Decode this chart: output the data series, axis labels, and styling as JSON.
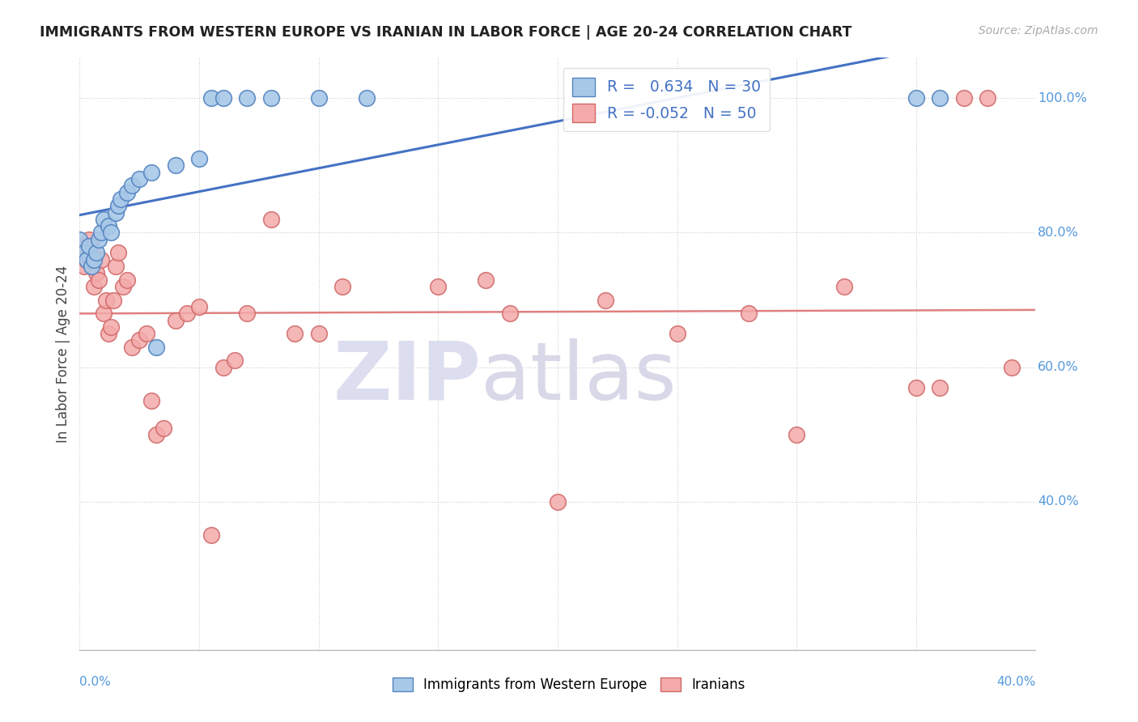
{
  "title": "IMMIGRANTS FROM WESTERN EUROPE VS IRANIAN IN LABOR FORCE | AGE 20-24 CORRELATION CHART",
  "source": "Source: ZipAtlas.com",
  "ylabel": "In Labor Force | Age 20-24",
  "legend_blue_label": "R =   0.634   N = 30",
  "legend_pink_label": "R = -0.052   N = 50",
  "legend_bottom_blue": "Immigrants from Western Europe",
  "legend_bottom_pink": "Iranians",
  "blue_color": "#A8C8E8",
  "pink_color": "#F4AAAA",
  "blue_edge_color": "#5585C0",
  "pink_edge_color": "#D06868",
  "blue_line_color": "#4472C4",
  "pink_line_color": "#E08080",
  "legend_text_color": "#4472C4",
  "right_axis_color": "#5599DD",
  "bg_color": "#FFFFFF",
  "xlim": [
    0,
    0.4
  ],
  "ylim": [
    0.18,
    1.06
  ],
  "ytick_vals": [
    1.0,
    0.8,
    0.6,
    0.4
  ],
  "ytick_labels": [
    "100.0%",
    "80.0%",
    "60.0%",
    "40.0%"
  ],
  "blue_x": [
    0.0,
    0.002,
    0.003,
    0.004,
    0.005,
    0.006,
    0.007,
    0.008,
    0.009,
    0.01,
    0.012,
    0.013,
    0.015,
    0.016,
    0.017,
    0.02,
    0.022,
    0.025,
    0.03,
    0.032,
    0.04,
    0.05,
    0.055,
    0.06,
    0.07,
    0.08,
    0.1,
    0.12,
    0.35,
    0.36
  ],
  "blue_y": [
    0.79,
    0.77,
    0.76,
    0.78,
    0.75,
    0.76,
    0.77,
    0.79,
    0.8,
    0.82,
    0.81,
    0.8,
    0.83,
    0.84,
    0.85,
    0.86,
    0.87,
    0.88,
    0.89,
    0.63,
    0.9,
    0.91,
    1.0,
    1.0,
    1.0,
    1.0,
    1.0,
    1.0,
    1.0,
    1.0
  ],
  "pink_x": [
    0.0,
    0.001,
    0.002,
    0.003,
    0.004,
    0.005,
    0.006,
    0.007,
    0.008,
    0.009,
    0.01,
    0.011,
    0.012,
    0.013,
    0.014,
    0.015,
    0.016,
    0.018,
    0.02,
    0.022,
    0.025,
    0.028,
    0.03,
    0.032,
    0.035,
    0.04,
    0.045,
    0.05,
    0.055,
    0.06,
    0.065,
    0.07,
    0.08,
    0.09,
    0.1,
    0.11,
    0.15,
    0.17,
    0.18,
    0.2,
    0.22,
    0.25,
    0.28,
    0.3,
    0.32,
    0.35,
    0.36,
    0.37,
    0.38,
    0.39
  ],
  "pink_y": [
    0.77,
    0.78,
    0.75,
    0.76,
    0.79,
    0.78,
    0.72,
    0.74,
    0.73,
    0.76,
    0.68,
    0.7,
    0.65,
    0.66,
    0.7,
    0.75,
    0.77,
    0.72,
    0.73,
    0.63,
    0.64,
    0.65,
    0.55,
    0.5,
    0.51,
    0.67,
    0.68,
    0.69,
    0.35,
    0.6,
    0.61,
    0.68,
    0.82,
    0.65,
    0.65,
    0.72,
    0.72,
    0.73,
    0.68,
    0.4,
    0.7,
    0.65,
    0.68,
    0.5,
    0.72,
    0.57,
    0.57,
    1.0,
    1.0,
    0.6
  ]
}
